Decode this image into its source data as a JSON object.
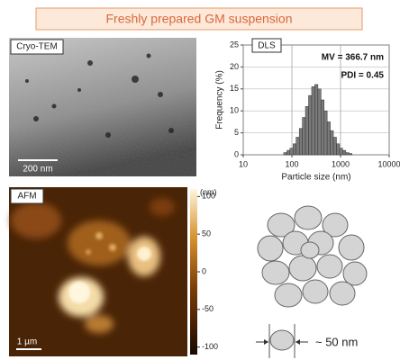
{
  "title": "Freshly prepared GM suspension",
  "cryo_tem": {
    "label": "Cryo-TEM",
    "scale_bar": "200 nm"
  },
  "afm": {
    "label": "AFM",
    "scale_bar": "1 µm",
    "colorbar": {
      "unit": "(nm)",
      "lim": [
        -110,
        110
      ],
      "ticks": [
        100,
        50,
        0,
        -50,
        -100
      ]
    }
  },
  "model": {
    "size_label": "~ 50 nm"
  },
  "chart_data": {
    "type": "histogram",
    "label": "DLS",
    "annotations": [
      "MV = 366.7 nm",
      "PDI = 0.45"
    ],
    "x_label": "Particle size (nm)",
    "y_label": "Frequency (%)",
    "bins": [
      68,
      79,
      91,
      106,
      122,
      142,
      164,
      190,
      220,
      255,
      295,
      342,
      396,
      459,
      531,
      615,
      712,
      825,
      955,
      1106,
      1281,
      1484,
      1718
    ],
    "values": [
      0.5,
      1,
      1.5,
      2.5,
      4,
      6,
      8.5,
      11,
      13.5,
      15.5,
      16,
      15,
      12.5,
      10,
      7.5,
      5.5,
      4,
      2.5,
      1.5,
      1,
      0.5,
      0.3
    ],
    "color": "#7a7a7a",
    "log_x": true,
    "xlim": [
      10,
      10000
    ],
    "xticks": [
      10,
      100,
      1000,
      10000
    ],
    "ylim": [
      0,
      25
    ],
    "yticks": [
      0,
      5,
      10,
      15,
      20,
      25
    ],
    "grid": true
  }
}
